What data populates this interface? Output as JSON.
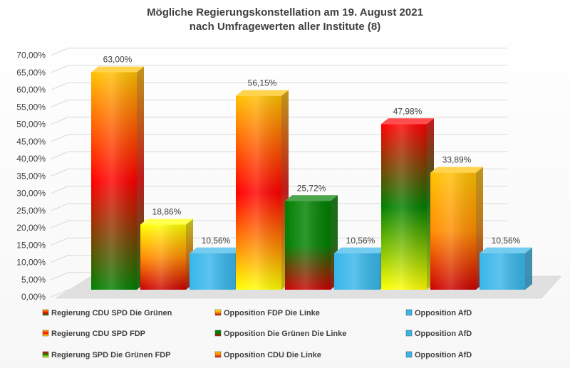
{
  "chart_data": {
    "type": "bar",
    "title": "Mögliche Regierungskonstellation am 19. August 2021",
    "subtitle": "nach Umfragewerten aller Institute (8)",
    "ylim": [
      0,
      70
    ],
    "yticks": [
      "0,00%",
      "5,00%",
      "10,00%",
      "15,00%",
      "20,00%",
      "25,00%",
      "30,00%",
      "35,00%",
      "40,00%",
      "45,00%",
      "50,00%",
      "55,00%",
      "60,00%",
      "65,00%",
      "70,00%"
    ],
    "grid": true,
    "legend_position": "bottom",
    "groups": [
      {
        "bars": [
          {
            "name": "Regierung CDU SPD Die Grünen",
            "value": 63.0,
            "label": "63,00%",
            "colors": [
              "#ffc000",
              "#ff0000",
              "#008000"
            ]
          },
          {
            "name": "Opposition FDP Die Linke",
            "value": 18.86,
            "label": "18,86%",
            "colors": [
              "#ffff00",
              "#ff8c00",
              "#cc0000"
            ]
          },
          {
            "name": "Opposition AfD",
            "value": 10.56,
            "label": "10,56%",
            "colors": [
              "#38b6ea",
              "#38b6ea",
              "#38b6ea"
            ]
          }
        ]
      },
      {
        "bars": [
          {
            "name": "Regierung CDU SPD FDP",
            "value": 56.15,
            "label": "56,15%",
            "colors": [
              "#ffc000",
              "#ff0000",
              "#ffff00"
            ]
          },
          {
            "name": "Opposition Die Grünen Die Linke",
            "value": 25.72,
            "label": "25,72%",
            "colors": [
              "#008000",
              "#008000",
              "#cc0000"
            ]
          },
          {
            "name": "Opposition AfD",
            "value": 10.56,
            "label": "10,56%",
            "colors": [
              "#38b6ea",
              "#38b6ea",
              "#38b6ea"
            ]
          }
        ]
      },
      {
        "bars": [
          {
            "name": "Regierung SPD Die Grünen FDP",
            "value": 47.98,
            "label": "47,98%",
            "colors": [
              "#ff0000",
              "#008000",
              "#ffff00"
            ]
          },
          {
            "name": "Opposition CDU Die Linke",
            "value": 33.89,
            "label": "33,89%",
            "colors": [
              "#ffc000",
              "#ff8c00",
              "#cc0000"
            ]
          },
          {
            "name": "Opposition AfD",
            "value": 10.56,
            "label": "10,56%",
            "colors": [
              "#38b6ea",
              "#38b6ea",
              "#38b6ea"
            ]
          }
        ]
      }
    ],
    "legend": [
      [
        "Regierung CDU SPD Die Grünen",
        "Opposition FDP Die Linke",
        "Opposition AfD"
      ],
      [
        "Regierung CDU SPD FDP",
        "Opposition Die Grünen Die Linke",
        "Opposition AfD"
      ],
      [
        "Regierung SPD Die Grünen FDP",
        "Opposition CDU Die Linke",
        "Opposition AfD"
      ]
    ]
  }
}
